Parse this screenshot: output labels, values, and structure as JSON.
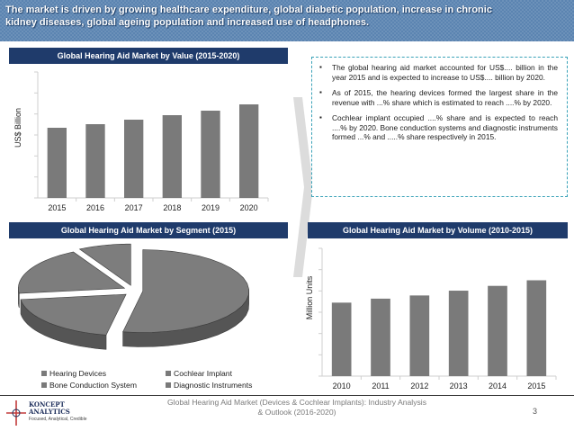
{
  "banner": {
    "line1": "The market is driven by growing healthcare expenditure, global diabetic population, increase in chronic",
    "line2": "kidney diseases, global ageing population and increased use of headphones."
  },
  "value_chart": {
    "title": "Global Hearing Aid Market by Value (2015-2020)",
    "ylabel": "US$ Billion"
  },
  "segment_chart": {
    "title": "Global Hearing Aid Market by Segment (2015)",
    "legend": [
      "Hearing Devices",
      "Cochlear Implant",
      "Bone Conduction System",
      "Diagnostic Instruments"
    ]
  },
  "volume_chart": {
    "title": "Global Hearing Aid Market by Volume (2010-2015)",
    "ylabel": "Million Units"
  },
  "bullets": [
    "The global hearing aid market accounted for US$.... billion in the year 2015 and is expected to increase to US$.... billion by 2020.",
    "As of 2015, the hearing devices formed the largest share in the revenue with ...% share which is estimated to reach ....% by 2020.",
    " Cochlear implant occupied ....% share and is expected to reach ....% by 2020. Bone conduction systems and diagnostic instruments formed ...% and .....% share respectively in 2015."
  ],
  "footer": {
    "line1": "Global Hearing Aid Market (Devices & Cochlear Implants): Industry Analysis",
    "line2": "& Outlook (2016-2020)",
    "page": "3"
  },
  "logo": {
    "name_line1": "KONCEPT",
    "name_line2": "ANALYTICS",
    "tagline": "Focused, Analytical, Credible"
  },
  "colors": {
    "banner": "#5b84b1",
    "title_bar": "#1f3b6b",
    "bar": "#7a7a7a",
    "chevron": "#d9d9d9"
  },
  "chart_data": [
    {
      "type": "bar",
      "title": "Global Hearing Aid Market by Value (2015-2020)",
      "categories": [
        "2015",
        "2016",
        "2017",
        "2018",
        "2019",
        "2020"
      ],
      "values": [
        3.9,
        4.1,
        4.35,
        4.6,
        4.85,
        5.2
      ],
      "ylabel": "US$ Billion",
      "ylim": [
        0,
        7
      ],
      "grid": false
    },
    {
      "type": "pie",
      "title": "Global Hearing Aid Market by Segment (2015)",
      "categories": [
        "Hearing Devices",
        "Cochlear Implant",
        "Bone Conduction System",
        "Diagnostic Instruments"
      ],
      "values": [
        53,
        20,
        19,
        8
      ],
      "legend": "bottom"
    },
    {
      "type": "bar",
      "title": "Global Hearing Aid Market by Volume (2010-2015)",
      "categories": [
        "2010",
        "2011",
        "2012",
        "2013",
        "2014",
        "2015"
      ],
      "values": [
        4.6,
        4.85,
        5.05,
        5.35,
        5.65,
        6.0
      ],
      "ylabel": "Million Units",
      "ylim": [
        0,
        8
      ],
      "grid": false
    }
  ]
}
